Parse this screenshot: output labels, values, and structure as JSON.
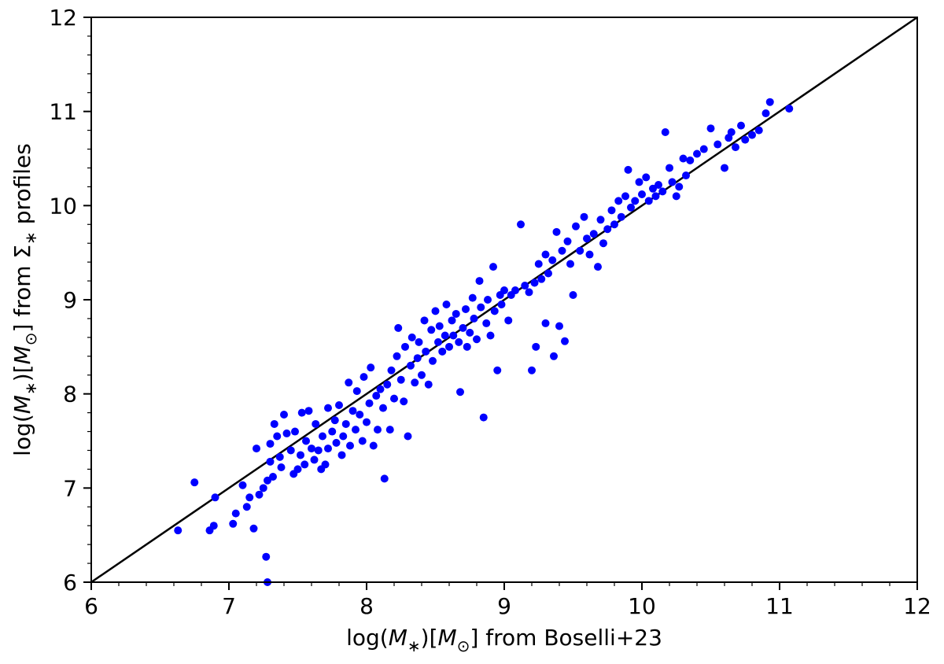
{
  "chart_data": {
    "type": "scatter",
    "title": "",
    "xlabel": "log(M*)[M⊙] from Boselli+23",
    "ylabel": "log(M*)[M⊙] from Σ* profiles",
    "xlim": [
      6,
      12
    ],
    "ylim": [
      6,
      12
    ],
    "xticks": [
      "6",
      "7",
      "8",
      "9",
      "10",
      "11",
      "12"
    ],
    "yticks": [
      "6",
      "7",
      "8",
      "9",
      "10",
      "11",
      "12"
    ],
    "grid": false,
    "legend": "none",
    "marker_color": "#0000ff",
    "line_color": "#000000",
    "reference_line": {
      "x": [
        6,
        12
      ],
      "y": [
        6,
        12
      ]
    },
    "points": [
      [
        6.63,
        6.55
      ],
      [
        6.75,
        7.06
      ],
      [
        6.86,
        6.55
      ],
      [
        6.89,
        6.6
      ],
      [
        6.9,
        6.9
      ],
      [
        7.03,
        6.62
      ],
      [
        7.05,
        6.73
      ],
      [
        7.1,
        7.03
      ],
      [
        7.13,
        6.8
      ],
      [
        7.15,
        6.9
      ],
      [
        7.18,
        6.57
      ],
      [
        7.2,
        7.42
      ],
      [
        7.22,
        6.93
      ],
      [
        7.25,
        7.0
      ],
      [
        7.27,
        6.27
      ],
      [
        7.28,
        6.0
      ],
      [
        7.28,
        7.08
      ],
      [
        7.3,
        7.28
      ],
      [
        7.3,
        7.47
      ],
      [
        7.32,
        7.12
      ],
      [
        7.33,
        7.68
      ],
      [
        7.35,
        7.55
      ],
      [
        7.37,
        7.33
      ],
      [
        7.38,
        7.22
      ],
      [
        7.4,
        7.78
      ],
      [
        7.42,
        7.58
      ],
      [
        7.45,
        7.4
      ],
      [
        7.47,
        7.15
      ],
      [
        7.48,
        7.6
      ],
      [
        7.5,
        7.2
      ],
      [
        7.52,
        7.35
      ],
      [
        7.53,
        7.8
      ],
      [
        7.55,
        7.25
      ],
      [
        7.56,
        7.5
      ],
      [
        7.58,
        7.82
      ],
      [
        7.6,
        7.42
      ],
      [
        7.62,
        7.3
      ],
      [
        7.63,
        7.68
      ],
      [
        7.65,
        7.4
      ],
      [
        7.67,
        7.2
      ],
      [
        7.68,
        7.55
      ],
      [
        7.7,
        7.25
      ],
      [
        7.72,
        7.85
      ],
      [
        7.72,
        7.42
      ],
      [
        7.75,
        7.6
      ],
      [
        7.77,
        7.72
      ],
      [
        7.78,
        7.48
      ],
      [
        7.8,
        7.88
      ],
      [
        7.82,
        7.35
      ],
      [
        7.83,
        7.55
      ],
      [
        7.85,
        7.68
      ],
      [
        7.87,
        8.12
      ],
      [
        7.88,
        7.45
      ],
      [
        7.9,
        7.82
      ],
      [
        7.92,
        7.62
      ],
      [
        7.93,
        8.03
      ],
      [
        7.95,
        7.78
      ],
      [
        7.97,
        7.5
      ],
      [
        7.98,
        8.18
      ],
      [
        8.0,
        7.7
      ],
      [
        8.02,
        7.9
      ],
      [
        8.03,
        8.28
      ],
      [
        8.05,
        7.45
      ],
      [
        8.07,
        7.98
      ],
      [
        8.08,
        7.62
      ],
      [
        8.1,
        8.05
      ],
      [
        8.12,
        7.85
      ],
      [
        8.13,
        7.1
      ],
      [
        8.15,
        8.1
      ],
      [
        8.17,
        7.62
      ],
      [
        8.18,
        8.25
      ],
      [
        8.2,
        7.95
      ],
      [
        8.22,
        8.4
      ],
      [
        8.23,
        8.7
      ],
      [
        8.25,
        8.15
      ],
      [
        8.27,
        7.92
      ],
      [
        8.28,
        8.5
      ],
      [
        8.3,
        7.55
      ],
      [
        8.32,
        8.3
      ],
      [
        8.33,
        8.6
      ],
      [
        8.35,
        8.12
      ],
      [
        8.37,
        8.38
      ],
      [
        8.38,
        8.55
      ],
      [
        8.4,
        8.2
      ],
      [
        8.42,
        8.78
      ],
      [
        8.43,
        8.45
      ],
      [
        8.45,
        8.1
      ],
      [
        8.47,
        8.68
      ],
      [
        8.48,
        8.35
      ],
      [
        8.5,
        8.88
      ],
      [
        8.52,
        8.55
      ],
      [
        8.53,
        8.72
      ],
      [
        8.55,
        8.45
      ],
      [
        8.57,
        8.62
      ],
      [
        8.58,
        8.95
      ],
      [
        8.6,
        8.5
      ],
      [
        8.62,
        8.78
      ],
      [
        8.63,
        8.62
      ],
      [
        8.65,
        8.85
      ],
      [
        8.67,
        8.55
      ],
      [
        8.68,
        8.02
      ],
      [
        8.7,
        8.7
      ],
      [
        8.72,
        8.9
      ],
      [
        8.73,
        8.5
      ],
      [
        8.75,
        8.65
      ],
      [
        8.77,
        9.02
      ],
      [
        8.78,
        8.8
      ],
      [
        8.8,
        8.58
      ],
      [
        8.82,
        9.2
      ],
      [
        8.83,
        8.92
      ],
      [
        8.85,
        7.75
      ],
      [
        8.87,
        8.75
      ],
      [
        8.88,
        9.0
      ],
      [
        8.9,
        8.62
      ],
      [
        8.92,
        9.35
      ],
      [
        8.93,
        8.88
      ],
      [
        8.95,
        8.25
      ],
      [
        8.97,
        9.05
      ],
      [
        8.98,
        8.95
      ],
      [
        9.0,
        9.1
      ],
      [
        9.03,
        8.78
      ],
      [
        9.05,
        9.05
      ],
      [
        9.08,
        9.1
      ],
      [
        9.12,
        9.8
      ],
      [
        9.15,
        9.15
      ],
      [
        9.18,
        9.08
      ],
      [
        9.2,
        8.25
      ],
      [
        9.22,
        9.18
      ],
      [
        9.23,
        8.5
      ],
      [
        9.25,
        9.38
      ],
      [
        9.27,
        9.22
      ],
      [
        9.3,
        9.48
      ],
      [
        9.3,
        8.75
      ],
      [
        9.32,
        9.28
      ],
      [
        9.35,
        9.42
      ],
      [
        9.36,
        8.4
      ],
      [
        9.38,
        9.72
      ],
      [
        9.4,
        8.72
      ],
      [
        9.42,
        9.52
      ],
      [
        9.44,
        8.56
      ],
      [
        9.46,
        9.62
      ],
      [
        9.48,
        9.38
      ],
      [
        9.5,
        9.05
      ],
      [
        9.52,
        9.78
      ],
      [
        9.55,
        9.52
      ],
      [
        9.58,
        9.88
      ],
      [
        9.6,
        9.65
      ],
      [
        9.62,
        9.48
      ],
      [
        9.65,
        9.7
      ],
      [
        9.68,
        9.35
      ],
      [
        9.7,
        9.85
      ],
      [
        9.72,
        9.6
      ],
      [
        9.75,
        9.75
      ],
      [
        9.78,
        9.95
      ],
      [
        9.8,
        9.8
      ],
      [
        9.83,
        10.05
      ],
      [
        9.85,
        9.88
      ],
      [
        9.88,
        10.1
      ],
      [
        9.9,
        10.38
      ],
      [
        9.92,
        9.98
      ],
      [
        9.95,
        10.05
      ],
      [
        9.98,
        10.25
      ],
      [
        10.0,
        10.12
      ],
      [
        10.03,
        10.3
      ],
      [
        10.05,
        10.05
      ],
      [
        10.08,
        10.18
      ],
      [
        10.1,
        10.1
      ],
      [
        10.12,
        10.22
      ],
      [
        10.15,
        10.15
      ],
      [
        10.17,
        10.78
      ],
      [
        10.2,
        10.4
      ],
      [
        10.22,
        10.25
      ],
      [
        10.25,
        10.1
      ],
      [
        10.27,
        10.2
      ],
      [
        10.3,
        10.5
      ],
      [
        10.32,
        10.32
      ],
      [
        10.35,
        10.48
      ],
      [
        10.4,
        10.55
      ],
      [
        10.45,
        10.6
      ],
      [
        10.5,
        10.82
      ],
      [
        10.55,
        10.65
      ],
      [
        10.6,
        10.4
      ],
      [
        10.63,
        10.72
      ],
      [
        10.65,
        10.78
      ],
      [
        10.68,
        10.62
      ],
      [
        10.72,
        10.85
      ],
      [
        10.75,
        10.7
      ],
      [
        10.8,
        10.75
      ],
      [
        10.85,
        10.8
      ],
      [
        10.9,
        10.98
      ],
      [
        10.93,
        11.1
      ],
      [
        11.07,
        11.03
      ]
    ]
  }
}
